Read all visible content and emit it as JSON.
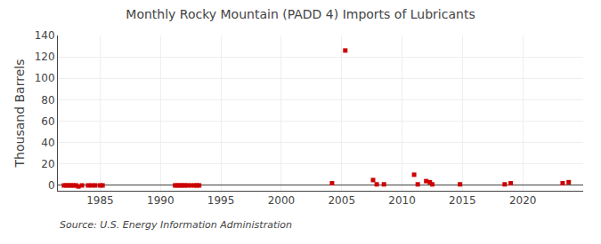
{
  "chart_data": {
    "type": "scatter",
    "title": "Monthly Rocky Mountain (PADD 4) Imports of Lubricants",
    "ylabel": "Thousand Barrels",
    "annotations": [
      "Source: U.S. Energy Information Administration"
    ],
    "x": [
      1982.0,
      1982.2,
      1982.4,
      1982.6,
      1982.8,
      1983.0,
      1983.2,
      1983.5,
      1984.0,
      1984.3,
      1984.6,
      1985.0,
      1985.2,
      1991.2,
      1991.4,
      1991.6,
      1991.8,
      1992.0,
      1992.2,
      1992.5,
      1992.8,
      1993.0,
      1993.2,
      2004.2,
      2005.3,
      2007.6,
      2007.9,
      2008.5,
      2011.0,
      2011.3,
      2012.0,
      2012.3,
      2012.5,
      2014.8,
      2018.5,
      2019.0,
      2023.3,
      2023.8
    ],
    "values": [
      0,
      0,
      0,
      0,
      0,
      0,
      -1,
      0,
      0,
      0,
      0,
      0,
      0,
      0,
      0,
      0,
      0,
      0,
      0,
      0,
      0,
      0,
      0,
      2,
      126,
      5,
      1,
      1,
      10,
      1,
      4,
      3,
      1,
      1,
      1,
      2,
      2,
      3
    ],
    "color": "#cc0000",
    "marker": "square",
    "xlim": [
      1981.5,
      2025.0
    ],
    "ylim": [
      -5,
      140
    ],
    "xticks": [
      1985,
      1990,
      1995,
      2000,
      2005,
      2010,
      2015,
      2020
    ],
    "yticks": [
      0,
      20,
      40,
      60,
      80,
      100,
      120,
      140
    ],
    "grid": true
  }
}
